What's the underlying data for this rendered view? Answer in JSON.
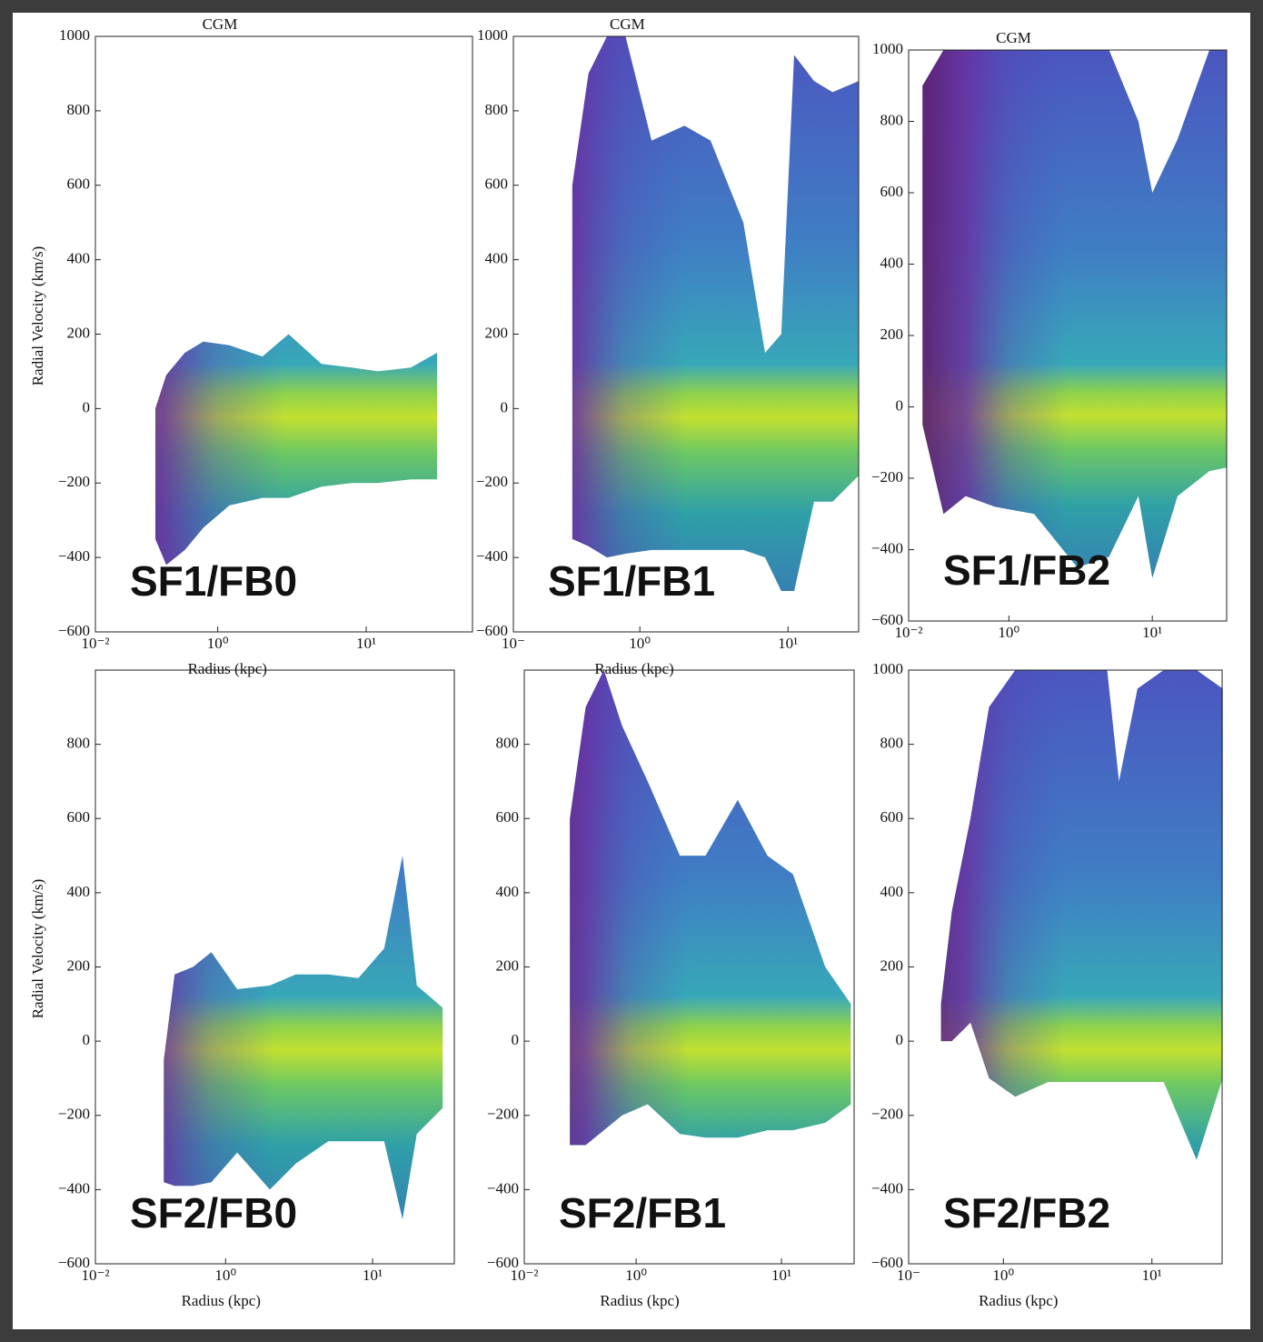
{
  "chart_data": [
    {
      "type": "area",
      "title": "CGM",
      "panel_label": "SF1/FB0",
      "xlabel": "Radius  (kpc)",
      "ylabel": "Radial Velocity  (km/s)",
      "xlog": true,
      "xlim": [
        0.15,
        52
      ],
      "ylim": [
        -600,
        1000
      ],
      "xmin_label": "10⁻²",
      "xticks": [
        {
          "value": 1,
          "label": "10⁰"
        },
        {
          "value": 10,
          "label": "10¹"
        }
      ],
      "yticks": [
        {
          "value": -600,
          "label": "−600"
        },
        {
          "value": -400,
          "label": "−400"
        },
        {
          "value": -200,
          "label": "−200"
        },
        0,
        200,
        400,
        600,
        800,
        1000
      ],
      "x": [
        0.38,
        0.45,
        0.6,
        0.8,
        1.2,
        2,
        3,
        5,
        8,
        12,
        20,
        30
      ],
      "ymax": [
        0,
        90,
        150,
        180,
        170,
        140,
        200,
        120,
        110,
        100,
        110,
        150
      ],
      "ymin": [
        -350,
        -420,
        -380,
        -320,
        -260,
        -240,
        -240,
        -210,
        -200,
        -200,
        -190,
        -190
      ]
    },
    {
      "type": "area",
      "title": "CGM",
      "panel_label": "SF1/FB1",
      "xlabel": "Radius  (kpc)",
      "xlog": true,
      "xlim": [
        0.14,
        30
      ],
      "ylim": [
        -600,
        1000
      ],
      "xmin_label": "10⁻",
      "xticks": [
        {
          "value": 1,
          "label": "10⁰"
        },
        {
          "value": 10,
          "label": "10¹"
        }
      ],
      "yticks": [
        {
          "value": -600,
          "label": "−600"
        },
        {
          "value": -400,
          "label": "−400"
        },
        {
          "value": -200,
          "label": "−200"
        },
        0,
        200,
        400,
        600,
        800,
        1000
      ],
      "x": [
        0.35,
        0.45,
        0.6,
        0.8,
        1.2,
        2,
        3,
        5,
        7,
        9,
        11,
        15,
        20,
        30
      ],
      "ymax": [
        600,
        900,
        1000,
        1000,
        720,
        760,
        720,
        500,
        150,
        200,
        950,
        880,
        850,
        880
      ],
      "ymin": [
        -350,
        -370,
        -400,
        -390,
        -380,
        -380,
        -380,
        -380,
        -400,
        -490,
        -490,
        -250,
        -250,
        -180
      ]
    },
    {
      "type": "area",
      "title": "CGM",
      "panel_label": "SF1/FB2",
      "xlog": true,
      "xlim": [
        0.2,
        33
      ],
      "ylim": [
        -600,
        1000
      ],
      "xmin_label": "10⁻²",
      "xticks": [
        {
          "value": 1,
          "label": "10⁰"
        },
        {
          "value": 10,
          "label": "10¹"
        }
      ],
      "yticks": [
        {
          "value": -600,
          "label": "−600"
        },
        {
          "value": -400,
          "label": "−400"
        },
        {
          "value": -200,
          "label": "−200"
        },
        0,
        200,
        400,
        600,
        800,
        1000
      ],
      "x": [
        0.25,
        0.35,
        0.5,
        0.8,
        1.5,
        3,
        5,
        8,
        10,
        15,
        25,
        33
      ],
      "ymax": [
        900,
        1000,
        1000,
        1000,
        1000,
        1000,
        1000,
        800,
        600,
        750,
        1000,
        1000
      ],
      "ymin": [
        -50,
        -300,
        -250,
        -280,
        -300,
        -450,
        -420,
        -250,
        -480,
        -250,
        -180,
        -170
      ]
    },
    {
      "type": "area",
      "panel_label": "SF2/FB0",
      "xlabel": "Radius  (kpc)",
      "ylabel": "Radial Velocity  (km/s)",
      "xlog": true,
      "xlim": [
        0.13,
        36
      ],
      "ylim": [
        -600,
        1000
      ],
      "xmin_label": "10⁻²",
      "xticks": [
        {
          "value": 1,
          "label": "10⁰"
        },
        {
          "value": 10,
          "label": "10¹"
        }
      ],
      "yticks": [
        {
          "value": -600,
          "label": "−600"
        },
        {
          "value": -400,
          "label": "−400"
        },
        {
          "value": -200,
          "label": "−200"
        },
        0,
        200,
        400,
        600,
        800
      ],
      "x": [
        0.38,
        0.45,
        0.6,
        0.8,
        1.2,
        2,
        3,
        5,
        8,
        12,
        16,
        20,
        30
      ],
      "ymax": [
        -50,
        180,
        200,
        240,
        140,
        150,
        180,
        180,
        170,
        250,
        500,
        150,
        90
      ],
      "ymin": [
        -380,
        -390,
        -390,
        -380,
        -300,
        -400,
        -330,
        -270,
        -270,
        -270,
        -480,
        -250,
        -180
      ]
    },
    {
      "type": "area",
      "panel_label": "SF2/FB1",
      "xlabel": "Radius  (kpc)",
      "xlog": true,
      "xlim": [
        0.17,
        31.6
      ],
      "ylim": [
        -600,
        1000
      ],
      "xmin_label": "10⁻²",
      "xticks": [
        {
          "value": 1,
          "label": "10⁰"
        },
        {
          "value": 10,
          "label": "10¹"
        }
      ],
      "yticks": [
        {
          "value": -600,
          "label": "−600"
        },
        {
          "value": -400,
          "label": "−400"
        },
        {
          "value": -200,
          "label": "−200"
        },
        0,
        200,
        400,
        600,
        800
      ],
      "x": [
        0.35,
        0.45,
        0.6,
        0.8,
        1.2,
        2,
        3,
        5,
        8,
        12,
        20,
        30
      ],
      "ymax": [
        600,
        900,
        1000,
        850,
        700,
        500,
        500,
        650,
        500,
        450,
        200,
        100
      ],
      "ymin": [
        -280,
        -280,
        -240,
        -200,
        -170,
        -250,
        -260,
        -260,
        -240,
        -240,
        -220,
        -170
      ]
    },
    {
      "type": "area",
      "panel_label": "SF2/FB2",
      "xlabel": "Radius  (kpc)",
      "xlog": true,
      "xlim": [
        0.23,
        29.7
      ],
      "ylim": [
        -600,
        1000
      ],
      "xmin_label": "10⁻",
      "xticks": [
        {
          "value": 1,
          "label": "10⁰"
        },
        {
          "value": 10,
          "label": "10¹"
        }
      ],
      "yticks": [
        {
          "value": -600,
          "label": "−600"
        },
        {
          "value": -400,
          "label": "−400"
        },
        {
          "value": -200,
          "label": "−200"
        },
        0,
        200,
        400,
        600,
        800,
        1000
      ],
      "x": [
        0.38,
        0.45,
        0.6,
        0.8,
        1.2,
        2,
        3,
        5,
        6,
        8,
        12,
        20,
        30
      ],
      "ymax": [
        100,
        350,
        600,
        900,
        1000,
        1000,
        1000,
        1000,
        700,
        950,
        1000,
        1000,
        950
      ],
      "ymin": [
        0,
        0,
        50,
        -100,
        -150,
        -110,
        -110,
        -110,
        -110,
        -110,
        -110,
        -320,
        -100
      ]
    }
  ]
}
